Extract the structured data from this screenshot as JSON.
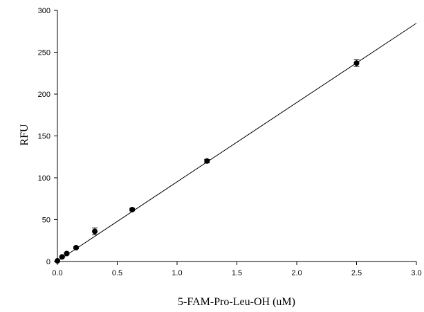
{
  "chart_data": {
    "type": "scatter",
    "title": "",
    "xlabel": "5-FAM-Pro-Leu-OH (uM)",
    "ylabel": "RFU",
    "xlim": [
      0.0,
      3.0
    ],
    "ylim": [
      0,
      300
    ],
    "x_ticks": [
      "0.0",
      "0.5",
      "1.0",
      "1.5",
      "2.0",
      "2.5",
      "3.0"
    ],
    "y_ticks": [
      "0",
      "50",
      "100",
      "150",
      "200",
      "250",
      "300"
    ],
    "grid": false,
    "legend": "none",
    "series": [
      {
        "x": [
          0.0,
          0.039,
          0.078,
          0.156,
          0.3125,
          0.625,
          1.25,
          2.5
        ],
        "y": [
          0.8,
          5.5,
          9.5,
          16.5,
          36,
          62,
          120,
          237
        ],
        "error": [
          0.5,
          0.8,
          1.0,
          1.2,
          4.0,
          1.5,
          2.0,
          4.0
        ]
      }
    ],
    "fit_line": {
      "type": "linear",
      "slope": 94.7,
      "intercept": 0.5
    },
    "colors": {
      "markers": "#000000",
      "line": "#000000",
      "axes": "#000000"
    }
  }
}
